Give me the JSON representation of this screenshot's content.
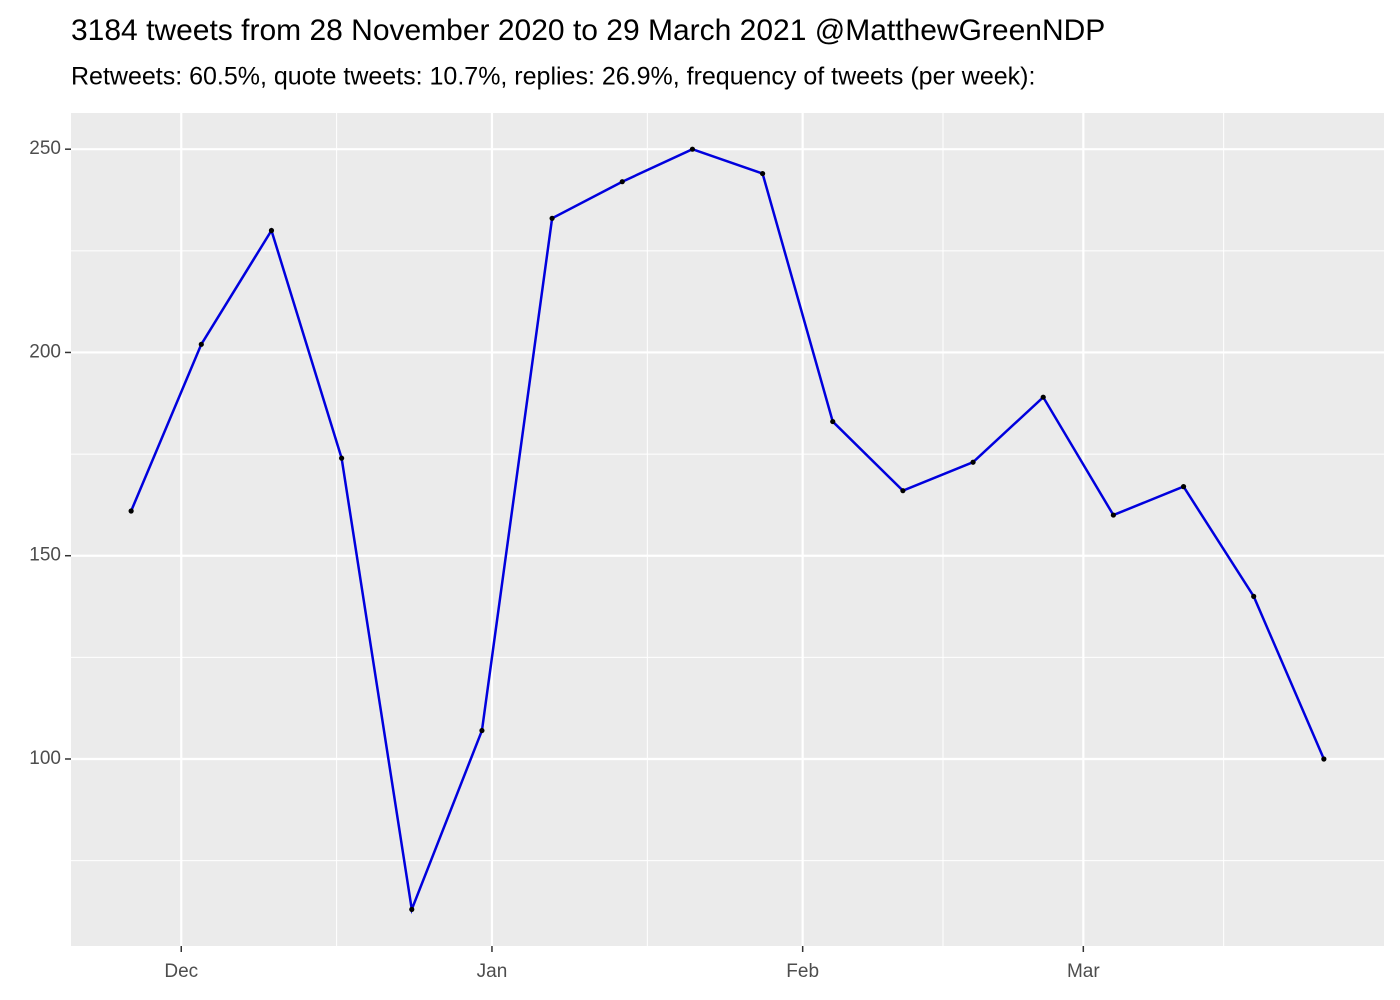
{
  "chart_data": {
    "type": "line",
    "title": "3184 tweets from 28 November 2020 to 29 March 2021 @MatthewGreenNDP",
    "subtitle": "Retweets: 60.5%, quote tweets: 10.7%, replies: 26.9%, frequency of tweets (per week):",
    "x": [
      "2020-11-26",
      "2020-12-03",
      "2020-12-10",
      "2020-12-17",
      "2020-12-24",
      "2020-12-31",
      "2021-01-07",
      "2021-01-14",
      "2021-01-21",
      "2021-01-28",
      "2021-02-04",
      "2021-02-11",
      "2021-02-18",
      "2021-02-25",
      "2021-03-04",
      "2021-03-11",
      "2021-03-18",
      "2021-03-25"
    ],
    "series": [
      {
        "color": "#0000dd",
        "values": [
          161,
          202,
          230,
          174,
          63,
          107,
          233,
          242,
          250,
          244,
          183,
          166,
          173,
          189,
          160,
          167,
          140,
          100
        ]
      }
    ],
    "xlim": [
      "2020-11-20",
      "2021-03-31"
    ],
    "xticks": [
      {
        "value": "2020-12-01",
        "label": "Dec"
      },
      {
        "value": "2021-01-01",
        "label": "Jan"
      },
      {
        "value": "2021-02-01",
        "label": "Feb"
      },
      {
        "value": "2021-03-01",
        "label": "Mar"
      }
    ],
    "ylim": [
      54,
      258.9
    ],
    "yticks": [
      100,
      150,
      200,
      250
    ],
    "grid": true
  }
}
